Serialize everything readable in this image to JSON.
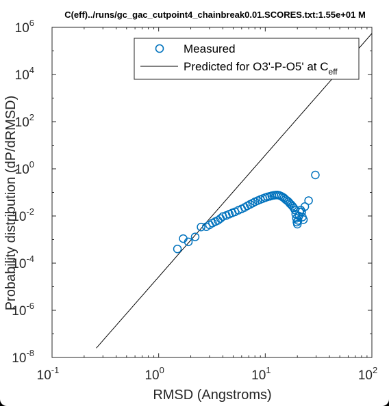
{
  "chart_data": {
    "type": "scatter",
    "title": "C(eff)../runs/gc_gac_cutpoint4_chainbreak0.01.SCORES.txt:1.55e+01 M",
    "xlabel": "RMSD (Angstroms)",
    "ylabel": "Probability distribution (dP/dRMSD)",
    "xscale": "log",
    "yscale": "log",
    "xlim": [
      0.1,
      100
    ],
    "ylim": [
      1e-08,
      1000000.0
    ],
    "x_ticks": [
      {
        "base": "10",
        "exp": "-1",
        "value": 0.1
      },
      {
        "base": "10",
        "exp": "0",
        "value": 1
      },
      {
        "base": "10",
        "exp": "1",
        "value": 10
      },
      {
        "base": "10",
        "exp": "2",
        "value": 100
      }
    ],
    "y_ticks": [
      {
        "base": "10",
        "exp": "-8",
        "value": 1e-08
      },
      {
        "base": "10",
        "exp": "-6",
        "value": 1e-06
      },
      {
        "base": "10",
        "exp": "-4",
        "value": 0.0001
      },
      {
        "base": "10",
        "exp": "-2",
        "value": 0.01
      },
      {
        "base": "10",
        "exp": "0",
        "value": 1
      },
      {
        "base": "10",
        "exp": "2",
        "value": 100
      },
      {
        "base": "10",
        "exp": "4",
        "value": 10000.0
      },
      {
        "base": "10",
        "exp": "6",
        "value": 1000000.0
      }
    ],
    "legend": {
      "position": "top-right",
      "entries": [
        {
          "label": "Measured",
          "marker": "circle"
        },
        {
          "label_main": "Predicted for O3'-P-O5' at C",
          "label_sub": "eff",
          "marker": "line"
        }
      ]
    },
    "series": [
      {
        "name": "Measured",
        "marker": "circle",
        "color": "#0072bd",
        "points": [
          [
            1.5,
            0.0004
          ],
          [
            1.7,
            0.0011
          ],
          [
            1.9,
            0.0008
          ],
          [
            2.2,
            0.0013
          ],
          [
            2.5,
            0.0034
          ],
          [
            2.8,
            0.0035
          ],
          [
            3.0,
            0.0042
          ],
          [
            3.2,
            0.005
          ],
          [
            3.4,
            0.0058
          ],
          [
            3.6,
            0.0065
          ],
          [
            3.8,
            0.0078
          ],
          [
            4.0,
            0.0095
          ],
          [
            4.3,
            0.0105
          ],
          [
            4.6,
            0.012
          ],
          [
            4.9,
            0.0135
          ],
          [
            5.2,
            0.015
          ],
          [
            5.6,
            0.0175
          ],
          [
            6.0,
            0.02
          ],
          [
            6.4,
            0.023
          ],
          [
            6.8,
            0.027
          ],
          [
            7.2,
            0.031
          ],
          [
            7.6,
            0.035
          ],
          [
            8.0,
            0.04
          ],
          [
            8.5,
            0.045
          ],
          [
            9.0,
            0.05
          ],
          [
            9.5,
            0.055
          ],
          [
            10.0,
            0.06
          ],
          [
            10.5,
            0.065
          ],
          [
            11.0,
            0.068
          ],
          [
            11.5,
            0.072
          ],
          [
            12.0,
            0.075
          ],
          [
            12.5,
            0.077
          ],
          [
            13.0,
            0.078
          ],
          [
            13.5,
            0.075
          ],
          [
            14.0,
            0.07
          ],
          [
            14.5,
            0.064
          ],
          [
            15.0,
            0.058
          ],
          [
            15.5,
            0.05
          ],
          [
            16.0,
            0.045
          ],
          [
            16.5,
            0.04
          ],
          [
            17.0,
            0.034
          ],
          [
            17.5,
            0.03
          ],
          [
            18.0,
            0.026
          ],
          [
            18.5,
            0.022
          ],
          [
            19.0,
            0.018
          ],
          [
            19.3,
            0.012
          ],
          [
            19.6,
            0.008
          ],
          [
            19.8,
            0.0055
          ],
          [
            20.0,
            0.0045
          ],
          [
            20.3,
            0.0065
          ],
          [
            20.7,
            0.01
          ],
          [
            21.0,
            0.015
          ],
          [
            21.5,
            0.018
          ],
          [
            22.0,
            0.015
          ],
          [
            22.3,
            0.009
          ],
          [
            22.8,
            0.007
          ],
          [
            23.5,
            0.025
          ],
          [
            25.5,
            0.045
          ],
          [
            29.5,
            0.55
          ]
        ]
      },
      {
        "name": "Predicted for O3'-P-O5' at Ceff",
        "type": "line",
        "color": "#000000",
        "points": [
          [
            0.26,
            2.5e-08
          ],
          [
            100,
            550000
          ]
        ]
      }
    ]
  }
}
